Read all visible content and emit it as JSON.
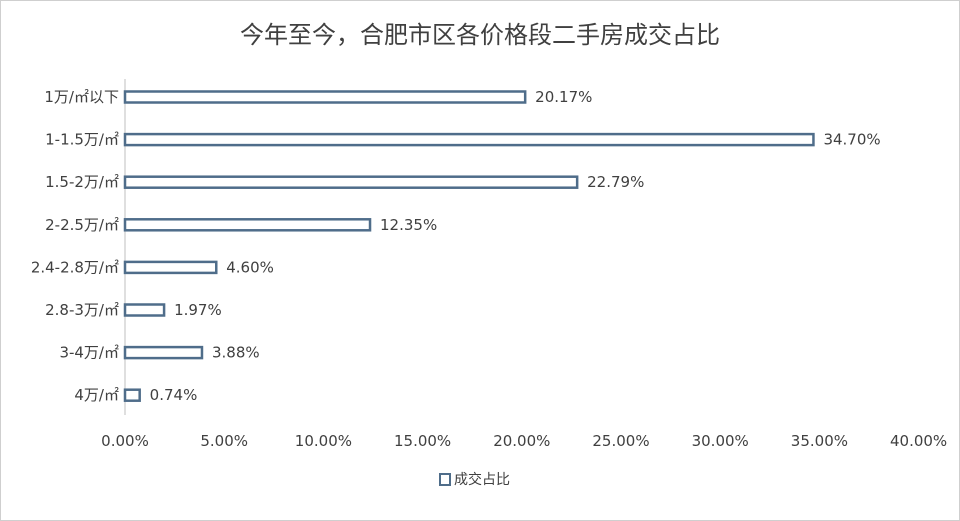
{
  "chart_data": {
    "type": "bar",
    "orientation": "horizontal",
    "title": "今年至今，合肥市区各价格段二手房成交占比",
    "categories": [
      "1万/㎡以下",
      "1-1.5万/㎡",
      "1.5-2万/㎡",
      "2-2.5万/㎡",
      "2.4-2.8万/㎡",
      "2.8-3万/㎡",
      "3-4万/㎡",
      "4万/㎡"
    ],
    "series": [
      {
        "name": "成交占比",
        "values": [
          20.17,
          34.7,
          22.79,
          12.35,
          4.6,
          1.97,
          3.88,
          0.74
        ],
        "labels": [
          "20.17%",
          "34.70%",
          "22.79%",
          "12.35%",
          "4.60%",
          "1.97%",
          "3.88%",
          "0.74%"
        ]
      }
    ],
    "xlim": [
      0,
      40
    ],
    "x_ticks": [
      "0.00%",
      "5.00%",
      "10.00%",
      "15.00%",
      "20.00%",
      "25.00%",
      "30.00%",
      "35.00%",
      "40.00%"
    ],
    "grid": false,
    "legend_position": "bottom",
    "bar_color": "#4f6d8a"
  }
}
